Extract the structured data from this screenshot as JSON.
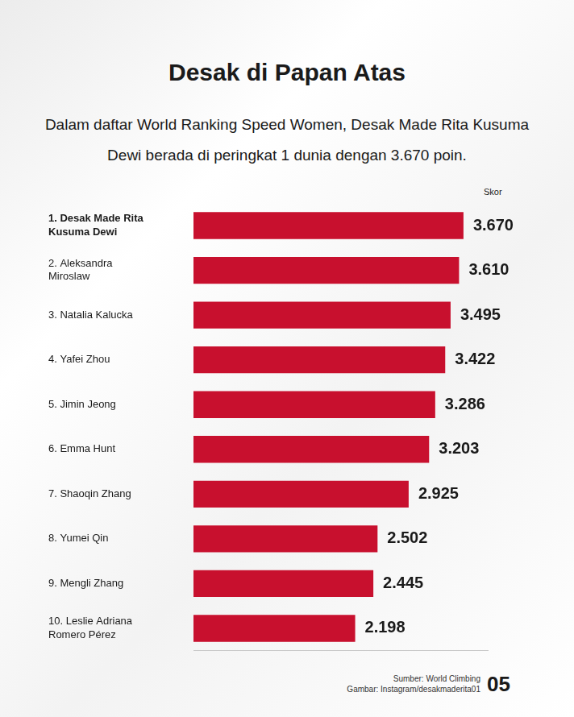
{
  "chart_data": {
    "type": "bar",
    "orientation": "horizontal",
    "title": "Desak di Papan Atas",
    "subtitle": "Dalam daftar World Ranking Speed Women, Desak Made Rita Kusuma Dewi berada di peringkat 1 dunia dengan 3.670 poin.",
    "score_header": "Skor",
    "categories": [
      "1. Desak Made Rita Kusuma Dewi",
      "2. Aleksandra Miroslaw",
      "3. Natalia Kalucka",
      "4. Yafei Zhou",
      "5. Jimin Jeong",
      "6. Emma Hunt",
      "7. Shaoqin Zhang",
      "8. Yumei Qin",
      "9. Mengli Zhang",
      "10. Leslie Adriana Romero Pérez"
    ],
    "values": [
      3670,
      3610,
      3495,
      3422,
      3286,
      3203,
      2925,
      2502,
      2445,
      2198
    ],
    "value_labels": [
      "3.670",
      "3.610",
      "3.495",
      "3.422",
      "3.286",
      "3.203",
      "2.925",
      "2.502",
      "2.445",
      "2.198"
    ],
    "color": "#c8102e",
    "xlim": [
      0,
      4000
    ],
    "grid": false,
    "data_labels": true,
    "tick_labels": "y",
    "source": "Sumber: World Climbing",
    "image_credit": "Gambar: Instagram/desakmaderita01",
    "page_number": "05"
  }
}
